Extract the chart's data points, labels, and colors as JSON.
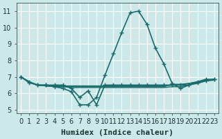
{
  "xlabel": "Humidex (Indice chaleur)",
  "bg_color": "#cce8e8",
  "grid_color": "#ffffff",
  "line_color": "#1a6b6b",
  "xlim": [
    -0.5,
    23.5
  ],
  "ylim": [
    4.8,
    11.5
  ],
  "xticks": [
    0,
    1,
    2,
    3,
    4,
    5,
    6,
    7,
    8,
    9,
    10,
    11,
    12,
    13,
    14,
    15,
    16,
    17,
    18,
    19,
    20,
    21,
    22,
    23
  ],
  "yticks": [
    5,
    6,
    7,
    8,
    9,
    10,
    11
  ],
  "series": [
    {
      "x": [
        0,
        1,
        2,
        3,
        4,
        5,
        6,
        7,
        8,
        9,
        10,
        11,
        12,
        13,
        14,
        15,
        16,
        17,
        18,
        19,
        20,
        21,
        22,
        23
      ],
      "y": [
        7.0,
        6.7,
        6.5,
        6.5,
        6.4,
        6.3,
        6.1,
        5.3,
        5.3,
        5.75,
        7.1,
        8.4,
        9.7,
        10.9,
        11.0,
        10.2,
        8.75,
        7.8,
        6.6,
        6.3,
        6.5,
        6.7,
        6.85,
        6.85
      ],
      "marker": true,
      "lw": 1.2
    },
    {
      "x": [
        0,
        1,
        2,
        3,
        4,
        5,
        6,
        7,
        8,
        9,
        10,
        11,
        12,
        13,
        14,
        15,
        16,
        17,
        18,
        19,
        20,
        21,
        22,
        23
      ],
      "y": [
        7.0,
        6.7,
        6.5,
        6.45,
        6.4,
        6.4,
        6.4,
        6.4,
        6.4,
        6.4,
        6.4,
        6.4,
        6.4,
        6.4,
        6.4,
        6.4,
        6.4,
        6.4,
        6.55,
        6.55,
        6.6,
        6.7,
        6.8,
        6.85
      ],
      "marker": false,
      "lw": 1.0
    },
    {
      "x": [
        0,
        1,
        2,
        3,
        4,
        5,
        6,
        7,
        8,
        9,
        10,
        11,
        12,
        13,
        14,
        15,
        16,
        17,
        18,
        19,
        20,
        21,
        22,
        23
      ],
      "y": [
        7.0,
        6.65,
        6.5,
        6.45,
        6.4,
        6.4,
        6.35,
        6.35,
        6.35,
        6.35,
        6.35,
        6.35,
        6.35,
        6.35,
        6.35,
        6.35,
        6.35,
        6.35,
        6.4,
        6.4,
        6.5,
        6.6,
        6.75,
        6.8
      ],
      "marker": false,
      "lw": 1.0
    },
    {
      "x": [
        0,
        1,
        2,
        3,
        4,
        5,
        6,
        7,
        8,
        9,
        10,
        11,
        12,
        13,
        14,
        15,
        16,
        17,
        18,
        19,
        20,
        21,
        22,
        23
      ],
      "y": [
        7.0,
        6.65,
        6.5,
        6.45,
        6.45,
        6.45,
        6.45,
        6.45,
        6.45,
        6.45,
        6.45,
        6.45,
        6.45,
        6.45,
        6.45,
        6.45,
        6.45,
        6.45,
        6.5,
        6.5,
        6.6,
        6.7,
        6.8,
        6.85
      ],
      "marker": false,
      "lw": 1.0
    },
    {
      "x": [
        0,
        1,
        2,
        3,
        4,
        5,
        6,
        7,
        8,
        9,
        10,
        11,
        12,
        13,
        14,
        15,
        16,
        17,
        18,
        19,
        20,
        21,
        22,
        23
      ],
      "y": [
        7.0,
        6.65,
        6.5,
        6.5,
        6.5,
        6.5,
        6.3,
        5.75,
        6.15,
        5.3,
        6.5,
        6.5,
        6.5,
        6.5,
        6.5,
        6.5,
        6.5,
        6.5,
        6.5,
        6.5,
        6.5,
        6.65,
        6.75,
        6.85
      ],
      "marker": true,
      "lw": 1.2
    }
  ],
  "font_color": "#1a3333",
  "tick_label_fontsize": 7,
  "xlabel_fontsize": 8
}
